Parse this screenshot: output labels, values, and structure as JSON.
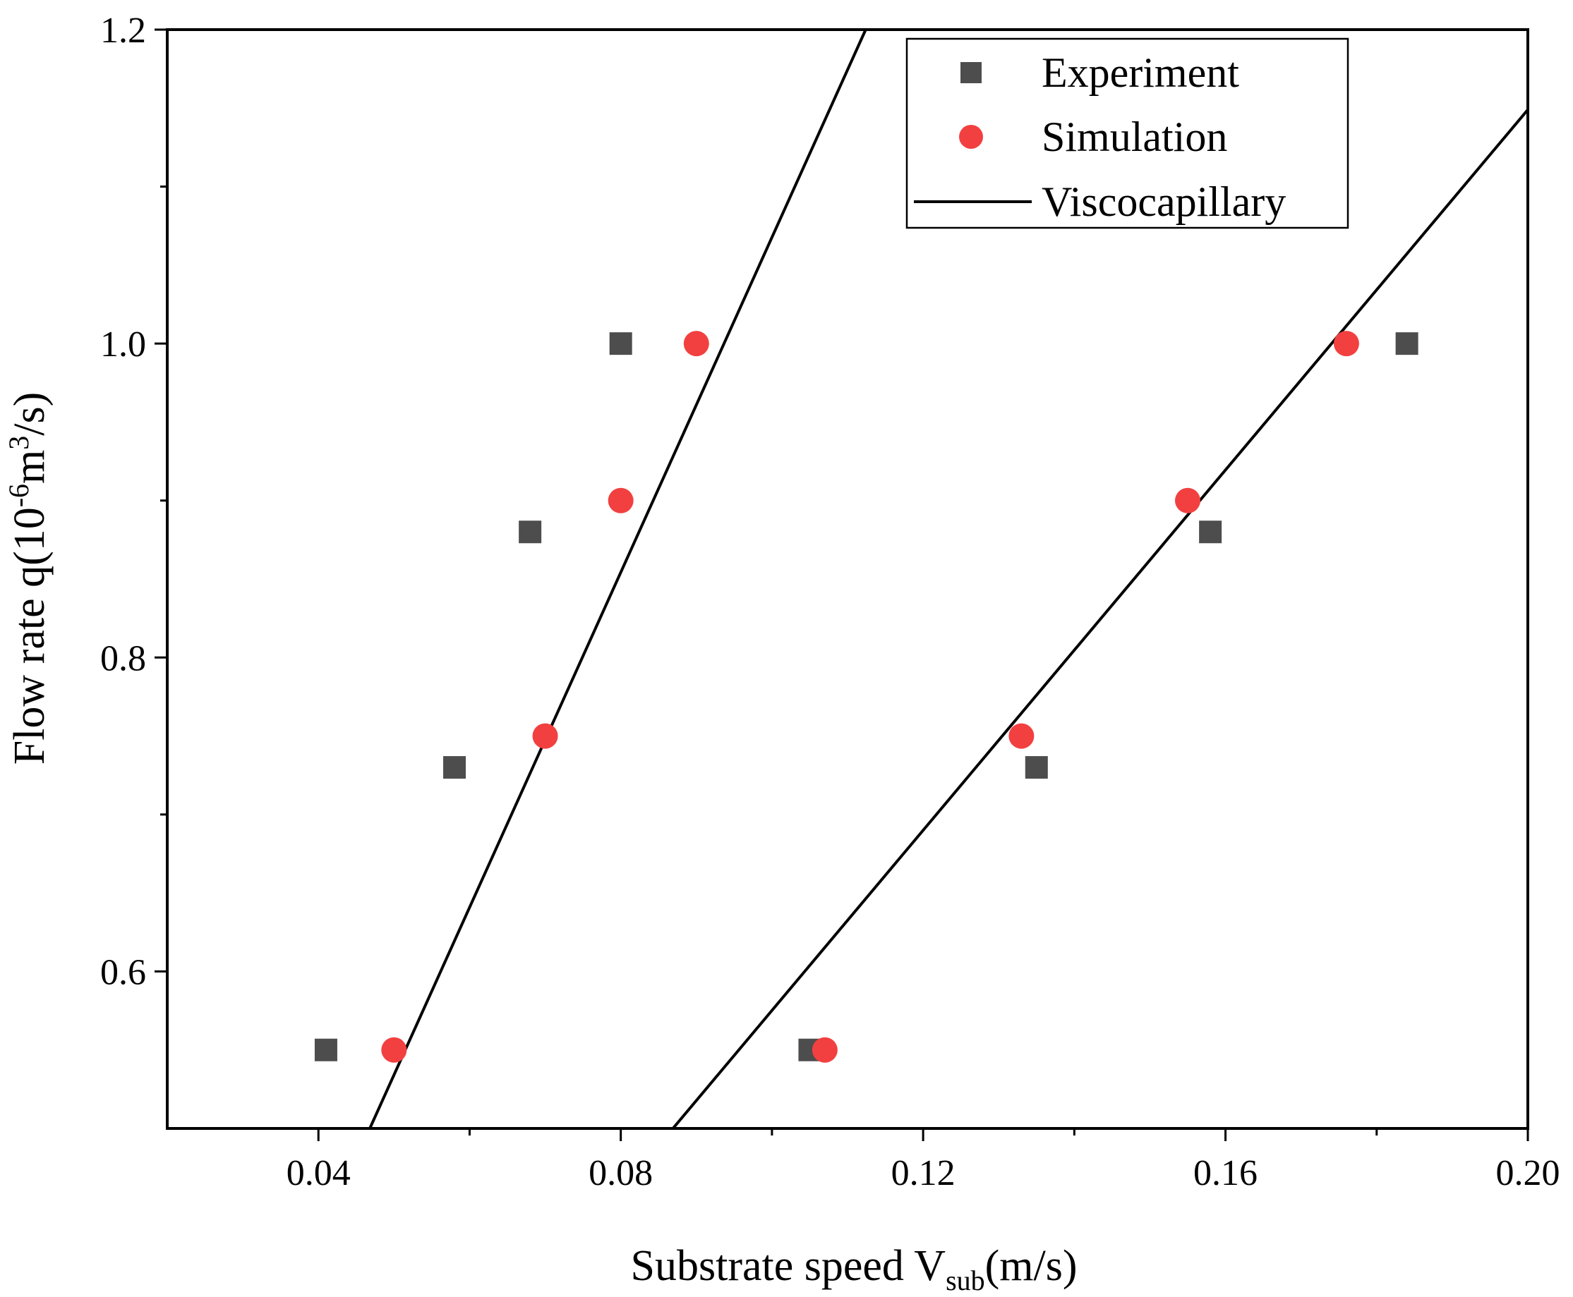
{
  "chart_data": {
    "type": "scatter",
    "xlabel": {
      "main": "Substrate speed V",
      "sub": "sub",
      "tail": "(m/s)"
    },
    "ylabel": {
      "main": "Flow rate q(10",
      "sup1": "-6",
      "mid": "m",
      "sup2": "3",
      "tail": "/s)"
    },
    "xlim": [
      0.02,
      0.2
    ],
    "ylim": [
      0.5,
      1.2
    ],
    "xticks": [
      {
        "value": 0.04,
        "label": "0.04"
      },
      {
        "value": 0.08,
        "label": "0.08"
      },
      {
        "value": 0.12,
        "label": "0.12"
      },
      {
        "value": 0.16,
        "label": "0.16"
      },
      {
        "value": 0.2,
        "label": "0.20"
      }
    ],
    "xminor": [
      0.06,
      0.1,
      0.14,
      0.18
    ],
    "yticks": [
      {
        "value": 0.6,
        "label": "0.6"
      },
      {
        "value": 0.8,
        "label": "0.8"
      },
      {
        "value": 1.0,
        "label": "1.0"
      },
      {
        "value": 1.2,
        "label": "1.2"
      }
    ],
    "yminor": [
      0.7,
      0.9,
      1.1
    ],
    "legend": {
      "position": "top-right"
    },
    "series": [
      {
        "name": "Experiment",
        "marker": "square",
        "color": "#4d4d4d",
        "points": [
          [
            0.041,
            0.55
          ],
          [
            0.058,
            0.73
          ],
          [
            0.068,
            0.88
          ],
          [
            0.08,
            1.0
          ],
          [
            0.105,
            0.55
          ],
          [
            0.135,
            0.73
          ],
          [
            0.158,
            0.88
          ],
          [
            0.184,
            1.0
          ]
        ]
      },
      {
        "name": "Simulation",
        "marker": "circle",
        "color": "#f24040",
        "points": [
          [
            0.05,
            0.55
          ],
          [
            0.07,
            0.75
          ],
          [
            0.08,
            0.9
          ],
          [
            0.09,
            1.0
          ],
          [
            0.107,
            0.55
          ],
          [
            0.133,
            0.75
          ],
          [
            0.155,
            0.9
          ],
          [
            0.176,
            1.0
          ]
        ]
      },
      {
        "name": "Viscocapillary",
        "marker": "line",
        "color": "#000000",
        "lines": [
          [
            [
              0.0468,
              0.5
            ],
            [
              0.1124,
              1.2
            ]
          ],
          [
            [
              0.0869,
              0.5
            ],
            [
              0.2,
              1.149
            ]
          ]
        ]
      }
    ]
  }
}
